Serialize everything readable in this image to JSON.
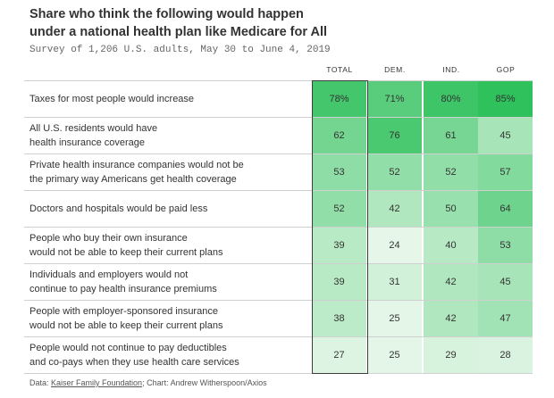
{
  "title": "Share who think the following would happen under a national health plan like Medicare for All",
  "subtitle": "Survey of 1,206 U.S. adults, May 30 to June 4, 2019",
  "source": {
    "prefix": "Data: ",
    "link": "Kaiser Family Foundation",
    "suffix": "; Chart: Andrew Witherspoon/Axios"
  },
  "chart_data": {
    "type": "heatmap",
    "columns": [
      "TOTAL",
      "DEM.",
      "IND.",
      "GOP"
    ],
    "rows": [
      {
        "label_lines": [
          "Taxes for most people would increase"
        ],
        "display": [
          "78%",
          "71%",
          "80%",
          "85%"
        ],
        "values": [
          78,
          71,
          80,
          85
        ]
      },
      {
        "label_lines": [
          "All U.S. residents would have",
          "health insurance coverage"
        ],
        "display": [
          "62",
          "76",
          "61",
          "45"
        ],
        "values": [
          62,
          76,
          61,
          45
        ]
      },
      {
        "label_lines": [
          "Private health insurance companies would not be",
          "the primary way Americans get health coverage"
        ],
        "display": [
          "53",
          "52",
          "52",
          "57"
        ],
        "values": [
          53,
          52,
          52,
          57
        ]
      },
      {
        "label_lines": [
          "Doctors and hospitals would be paid less"
        ],
        "display": [
          "52",
          "42",
          "50",
          "64"
        ],
        "values": [
          52,
          42,
          50,
          64
        ]
      },
      {
        "label_lines": [
          "People who buy their own insurance",
          "would not be able to keep their current plans"
        ],
        "display": [
          "39",
          "24",
          "40",
          "53"
        ],
        "values": [
          39,
          24,
          40,
          53
        ]
      },
      {
        "label_lines": [
          "Individuals and employers would not",
          "continue to pay health insurance premiums"
        ],
        "display": [
          "39",
          "31",
          "42",
          "45"
        ],
        "values": [
          39,
          31,
          42,
          45
        ]
      },
      {
        "label_lines": [
          "People with employer-sponsored insurance",
          "would not be able to keep their current plans"
        ],
        "display": [
          "38",
          "25",
          "42",
          "47"
        ],
        "values": [
          38,
          25,
          42,
          47
        ]
      },
      {
        "label_lines": [
          "People would not continue to pay deductibles",
          "and co-pays when they use health care services"
        ],
        "display": [
          "27",
          "25",
          "29",
          "28"
        ],
        "values": [
          27,
          25,
          29,
          28
        ]
      }
    ],
    "highlighted_column": "TOTAL",
    "color_low": "#e6f7e9",
    "color_high": "#2fc15c"
  }
}
